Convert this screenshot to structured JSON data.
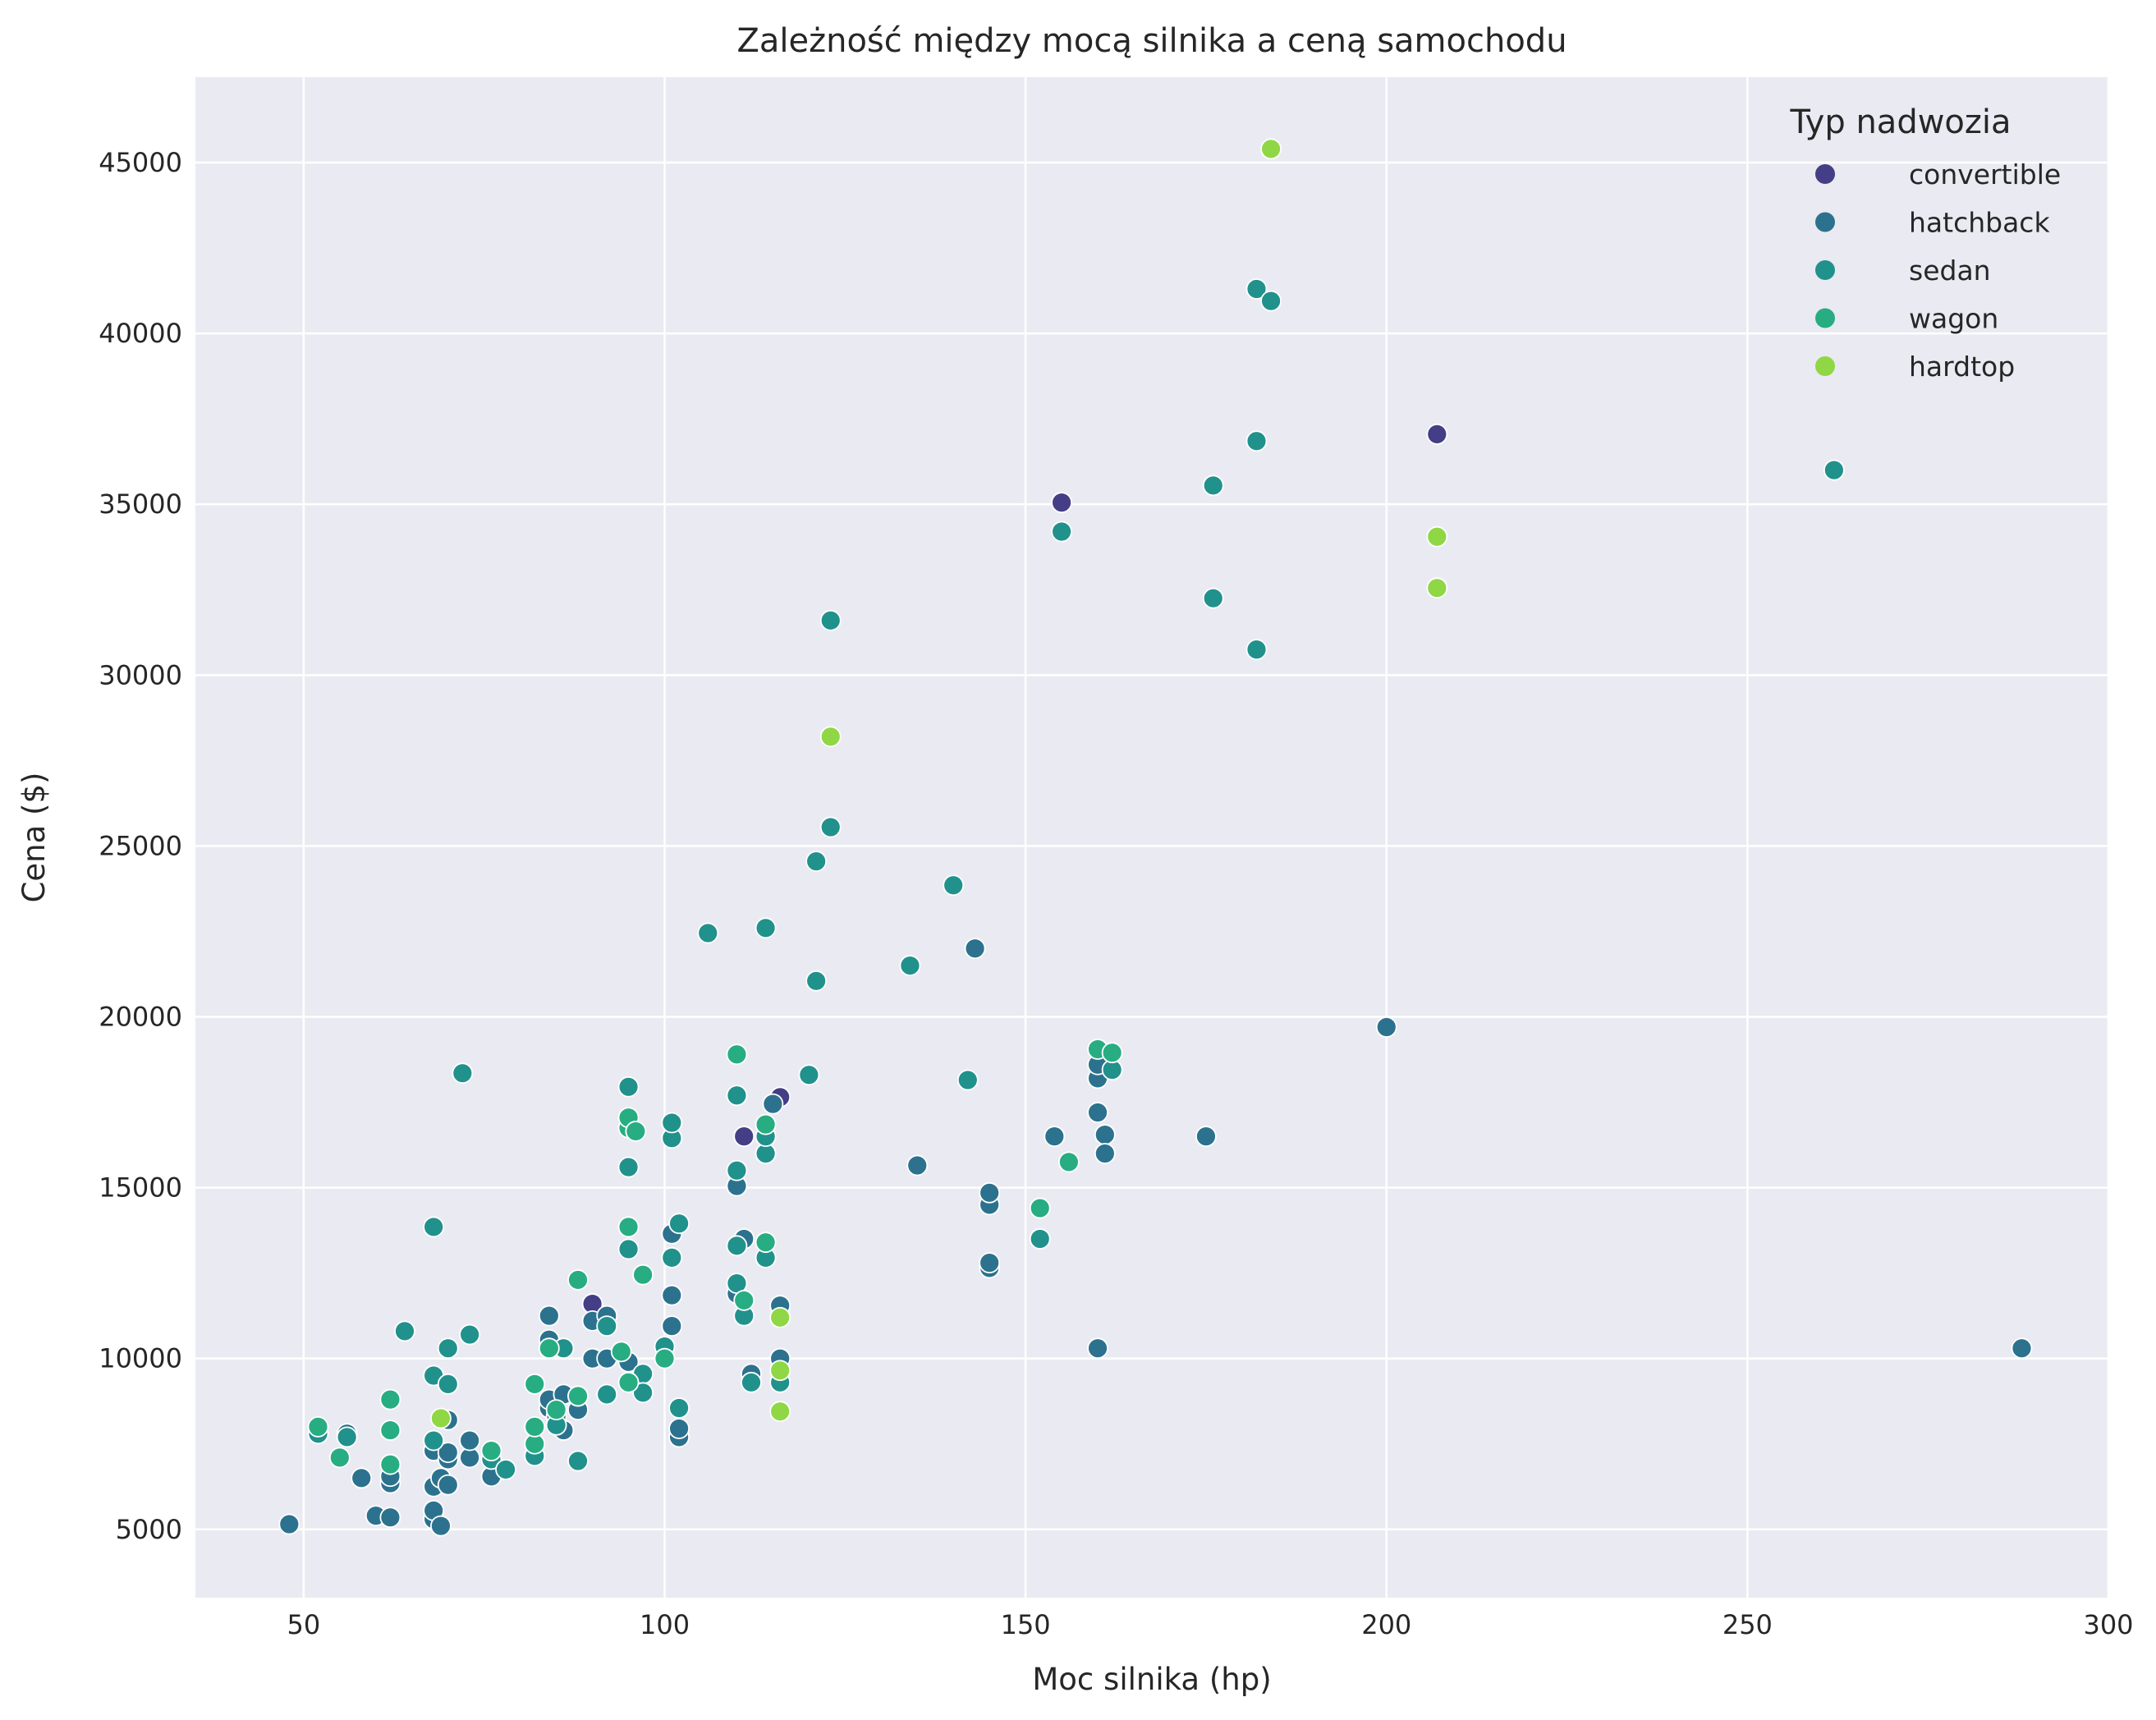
{
  "chart_data": {
    "type": "scatter",
    "title": "Zależność między mocą silnika a ceną samochodu",
    "xlabel": "Moc silnika (hp)",
    "ylabel": "Cena ($)",
    "xlim": [
      35,
      300
    ],
    "ylim": [
      3000,
      47500
    ],
    "xticks": [
      "50",
      "100",
      "150",
      "200",
      "250",
      "300"
    ],
    "yticks": [
      "5000",
      "10000",
      "15000",
      "20000",
      "25000",
      "30000",
      "35000",
      "40000",
      "45000"
    ],
    "grid": true,
    "background": "#eaeaf2",
    "legend": {
      "title": "Typ nadwozia",
      "placement": "top-right"
    },
    "series": [
      {
        "name": "convertible",
        "color": "#433e85",
        "points": [
          [
            90,
            11600
          ],
          [
            111,
            16500
          ],
          [
            116,
            17650
          ],
          [
            155,
            35050
          ],
          [
            207,
            37050
          ],
          [
            111,
            13500
          ]
        ]
      },
      {
        "name": "hatchback",
        "color": "#2c728e",
        "points": [
          [
            48,
            5150
          ],
          [
            56,
            7800
          ],
          [
            58,
            6500
          ],
          [
            60,
            5400
          ],
          [
            62,
            5350
          ],
          [
            62,
            6350
          ],
          [
            62,
            6550
          ],
          [
            68,
            5300
          ],
          [
            68,
            5550
          ],
          [
            68,
            6250
          ],
          [
            68,
            7300
          ],
          [
            69,
            5100
          ],
          [
            69,
            6500
          ],
          [
            70,
            6300
          ],
          [
            70,
            7050
          ],
          [
            70,
            7250
          ],
          [
            70,
            8200
          ],
          [
            73,
            7100
          ],
          [
            73,
            7600
          ],
          [
            76,
            6550
          ],
          [
            84,
            8550
          ],
          [
            84,
            8800
          ],
          [
            84,
            10550
          ],
          [
            84,
            11250
          ],
          [
            85,
            8050
          ],
          [
            85,
            8300
          ],
          [
            86,
            7900
          ],
          [
            86,
            8950
          ],
          [
            88,
            8500
          ],
          [
            90,
            10000
          ],
          [
            90,
            11100
          ],
          [
            92,
            11250
          ],
          [
            92,
            10000
          ],
          [
            95,
            9900
          ],
          [
            101,
            10950
          ],
          [
            101,
            11850
          ],
          [
            101,
            13650
          ],
          [
            102,
            7700
          ],
          [
            102,
            7950
          ],
          [
            110,
            15050
          ],
          [
            110,
            11900
          ],
          [
            111,
            13500
          ],
          [
            112,
            9550
          ],
          [
            115,
            17450
          ],
          [
            116,
            10000
          ],
          [
            116,
            11550
          ],
          [
            135,
            15650
          ],
          [
            143,
            22000
          ],
          [
            145,
            12650
          ],
          [
            145,
            12800
          ],
          [
            145,
            14500
          ],
          [
            145,
            14850
          ],
          [
            154,
            16500
          ],
          [
            160,
            10300
          ],
          [
            160,
            17200
          ],
          [
            160,
            18200
          ],
          [
            160,
            18600
          ],
          [
            161,
            16550
          ],
          [
            161,
            16000
          ],
          [
            175,
            16500
          ],
          [
            200,
            19700
          ],
          [
            288,
            10300
          ]
        ]
      },
      {
        "name": "sedan",
        "color": "#21918c",
        "points": [
          [
            52,
            7800
          ],
          [
            56,
            7700
          ],
          [
            64,
            10800
          ],
          [
            68,
            9500
          ],
          [
            68,
            13850
          ],
          [
            68,
            7600
          ],
          [
            70,
            9250
          ],
          [
            70,
            10300
          ],
          [
            72,
            18350
          ],
          [
            73,
            10700
          ],
          [
            76,
            7050
          ],
          [
            78,
            6750
          ],
          [
            82,
            7150
          ],
          [
            85,
            8050
          ],
          [
            86,
            10300
          ],
          [
            88,
            7000
          ],
          [
            88,
            8900
          ],
          [
            92,
            8950
          ],
          [
            92,
            10950
          ],
          [
            95,
            13200
          ],
          [
            95,
            15600
          ],
          [
            95,
            17950
          ],
          [
            97,
            9550
          ],
          [
            97,
            9000
          ],
          [
            100,
            10350
          ],
          [
            101,
            12950
          ],
          [
            101,
            16450
          ],
          [
            101,
            16900
          ],
          [
            102,
            8550
          ],
          [
            102,
            13950
          ],
          [
            106,
            22450
          ],
          [
            110,
            12200
          ],
          [
            110,
            13300
          ],
          [
            110,
            15500
          ],
          [
            110,
            17700
          ],
          [
            111,
            11250
          ],
          [
            112,
            9300
          ],
          [
            114,
            12950
          ],
          [
            114,
            16000
          ],
          [
            114,
            22600
          ],
          [
            114,
            16500
          ],
          [
            116,
            9300
          ],
          [
            120,
            18300
          ],
          [
            121,
            21050
          ],
          [
            121,
            24550
          ],
          [
            123,
            25550
          ],
          [
            123,
            31600
          ],
          [
            134,
            21500
          ],
          [
            140,
            23850
          ],
          [
            142,
            18150
          ],
          [
            152,
            13500
          ],
          [
            155,
            34200
          ],
          [
            162,
            18450
          ],
          [
            176,
            32250
          ],
          [
            176,
            35550
          ],
          [
            182,
            30750
          ],
          [
            182,
            36850
          ],
          [
            182,
            41300
          ],
          [
            184,
            40950
          ],
          [
            262,
            36000
          ]
        ]
      },
      {
        "name": "wagon",
        "color": "#27ad81",
        "points": [
          [
            52,
            8000
          ],
          [
            55,
            7100
          ],
          [
            62,
            6900
          ],
          [
            62,
            7900
          ],
          [
            62,
            8800
          ],
          [
            76,
            7300
          ],
          [
            82,
            7500
          ],
          [
            82,
            8000
          ],
          [
            82,
            9250
          ],
          [
            84,
            10300
          ],
          [
            85,
            8500
          ],
          [
            88,
            8900
          ],
          [
            88,
            12300
          ],
          [
            94,
            10200
          ],
          [
            95,
            9300
          ],
          [
            95,
            13850
          ],
          [
            95,
            16750
          ],
          [
            95,
            17050
          ],
          [
            96,
            16650
          ],
          [
            97,
            12450
          ],
          [
            100,
            10000
          ],
          [
            110,
            18900
          ],
          [
            111,
            11700
          ],
          [
            114,
            13400
          ],
          [
            114,
            16850
          ],
          [
            152,
            14400
          ],
          [
            156,
            15750
          ],
          [
            160,
            19050
          ],
          [
            162,
            18950
          ]
        ]
      },
      {
        "name": "hardtop",
        "color": "#8fd744",
        "points": [
          [
            69,
            8250
          ],
          [
            116,
            8450
          ],
          [
            116,
            9650
          ],
          [
            116,
            11200
          ],
          [
            123,
            28200
          ],
          [
            184,
            45400
          ],
          [
            207,
            32550
          ],
          [
            207,
            34050
          ]
        ]
      }
    ]
  }
}
